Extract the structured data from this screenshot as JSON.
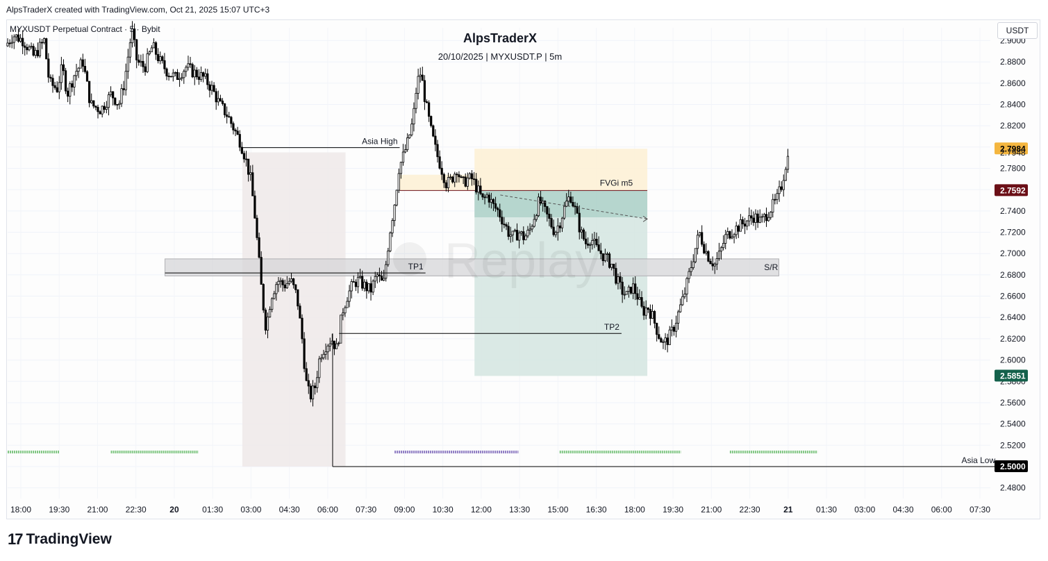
{
  "header": {
    "credit": "AlpsTraderX created with TradingView.com, Oct 21, 2025 15:07 UTC+3"
  },
  "legend": {
    "symbol": "MYXUSDT Perpetual Contract · 5 · Bybit"
  },
  "toolbar": {
    "currency": "USDT"
  },
  "footer": {
    "brand": "TradingView"
  },
  "colors": {
    "candle": "#000000",
    "asia_box": "#efe9e9",
    "fvg_box": "#fdf0d3",
    "tp_zone": "#d3e5e1",
    "tp_zone_dark": "#a9cfc6",
    "sr_box": "#d6d6d8",
    "session_green": "#81c784",
    "session_purple": "#8e7cc3",
    "price_orange": "#f4b63f",
    "price_maroon": "#6b0f17",
    "price_green": "#14614b",
    "price_black": "#000000"
  },
  "chart_data": {
    "type": "candlestick",
    "title": "AlpsTraderX",
    "subtitle": "20/10/2025 | MYXUSDT.P | 5m",
    "x_ticks": [
      "18:00",
      "19:30",
      "21:00",
      "22:30",
      "20",
      "01:30",
      "03:00",
      "04:30",
      "06:00",
      "07:30",
      "09:00",
      "10:30",
      "12:00",
      "13:30",
      "15:00",
      "16:30",
      "18:00",
      "19:30",
      "21:00",
      "22:30",
      "21",
      "01:30",
      "03:00",
      "04:30",
      "06:00",
      "07:30"
    ],
    "y_ticks": [
      2.48,
      2.5,
      2.52,
      2.54,
      2.56,
      2.58,
      2.6,
      2.62,
      2.64,
      2.66,
      2.68,
      2.7,
      2.72,
      2.74,
      2.76,
      2.78,
      2.8,
      2.82,
      2.84,
      2.86,
      2.88,
      2.9
    ],
    "ylim": [
      2.47,
      2.912
    ],
    "x_range_hours": [
      17.9,
      56.0
    ],
    "price_labels": [
      {
        "value": "2.7984",
        "price": 2.7984,
        "color_key": "price_orange",
        "text_color": "#000000"
      },
      {
        "value": "2.7948",
        "price": 2.7948,
        "plain": true
      },
      {
        "value": "2.7592",
        "price": 2.7592,
        "color_key": "price_maroon",
        "text_color": "#ffffff"
      },
      {
        "value": "2.5851",
        "price": 2.5851,
        "color_key": "price_green",
        "text_color": "#ffffff"
      },
      {
        "value": "2.5000",
        "price": 2.5,
        "color_key": "price_black",
        "text_color": "#ffffff"
      }
    ],
    "annotations": [
      {
        "text": "Asia High",
        "kind": "level",
        "price": 2.7995,
        "x0": 27.0,
        "x1": 33.1
      },
      {
        "text": "Asia Low",
        "kind": "level",
        "price": 2.5,
        "x0": 30.5,
        "x1": 56.3
      },
      {
        "text": "FVGi m5",
        "kind": "box"
      },
      {
        "text": "TP1",
        "kind": "level",
        "price": 2.6818,
        "x0": 24.0,
        "x1": 34.1
      },
      {
        "text": "TP2",
        "kind": "level",
        "price": 2.625,
        "x0": 30.75,
        "x1": 41.7
      },
      {
        "text": "S/R",
        "kind": "box"
      },
      {
        "text": "Replay",
        "kind": "watermark"
      }
    ],
    "zones": [
      {
        "name": "asia-session",
        "x0": 27.0,
        "x1": 31.0,
        "y0": 2.5,
        "y1": 2.795
      },
      {
        "name": "fvg",
        "x0": 33.1,
        "x1": 36.0,
        "y0": 2.7592,
        "y1": 2.774
      },
      {
        "name": "fvg-upper",
        "x0": 36.0,
        "x1": 42.7,
        "y0": 2.7592,
        "y1": 2.7984
      },
      {
        "name": "tp-dark",
        "x0": 36.0,
        "x1": 42.7,
        "y0": 2.734,
        "y1": 2.7592
      },
      {
        "name": "tp-light",
        "x0": 36.0,
        "x1": 42.7,
        "y0": 2.5851,
        "y1": 2.734
      },
      {
        "name": "sr",
        "x0": 24.0,
        "x1": 47.8,
        "y0": 2.679,
        "y1": 2.695
      }
    ],
    "trend_line": {
      "x0": 37.0,
      "y0": 2.755,
      "x1": 42.7,
      "y1": 2.7325
    },
    "sessions": [
      {
        "color_key": "session_green",
        "x0": 17.9,
        "x1": 19.9
      },
      {
        "color_key": "session_green",
        "x0": 21.9,
        "x1": 25.3
      },
      {
        "color_key": "session_purple",
        "x0": 32.9,
        "x1": 37.7
      },
      {
        "color_key": "session_green",
        "x0": 39.3,
        "x1": 44.0
      },
      {
        "color_key": "session_green",
        "x0": 45.9,
        "x1": 49.3
      }
    ],
    "path": [
      [
        17.9,
        2.895
      ],
      [
        18.2,
        2.905
      ],
      [
        18.6,
        2.9
      ],
      [
        19.0,
        2.885
      ],
      [
        19.4,
        2.9
      ],
      [
        19.6,
        2.86
      ],
      [
        19.9,
        2.855
      ],
      [
        20.1,
        2.875
      ],
      [
        20.3,
        2.85
      ],
      [
        20.6,
        2.87
      ],
      [
        20.9,
        2.88
      ],
      [
        21.2,
        2.84
      ],
      [
        21.6,
        2.835
      ],
      [
        22.0,
        2.85
      ],
      [
        22.3,
        2.84
      ],
      [
        22.5,
        2.86
      ],
      [
        22.8,
        2.91
      ],
      [
        23.0,
        2.88
      ],
      [
        23.3,
        2.875
      ],
      [
        23.6,
        2.895
      ],
      [
        23.9,
        2.88
      ],
      [
        24.2,
        2.87
      ],
      [
        24.5,
        2.865
      ],
      [
        24.9,
        2.875
      ],
      [
        25.2,
        2.87
      ],
      [
        25.6,
        2.865
      ],
      [
        25.9,
        2.855
      ],
      [
        26.2,
        2.84
      ],
      [
        26.5,
        2.83
      ],
      [
        26.8,
        2.815
      ],
      [
        27.0,
        2.805
      ],
      [
        27.2,
        2.79
      ],
      [
        27.4,
        2.77
      ],
      [
        27.55,
        2.74
      ],
      [
        27.7,
        2.7
      ],
      [
        27.85,
        2.66
      ],
      [
        28.0,
        2.63
      ],
      [
        28.2,
        2.66
      ],
      [
        28.45,
        2.675
      ],
      [
        28.7,
        2.67
      ],
      [
        28.95,
        2.675
      ],
      [
        29.2,
        2.66
      ],
      [
        29.4,
        2.62
      ],
      [
        29.55,
        2.58
      ],
      [
        29.7,
        2.565
      ],
      [
        29.9,
        2.575
      ],
      [
        30.1,
        2.605
      ],
      [
        30.35,
        2.615
      ],
      [
        30.55,
        2.62
      ],
      [
        30.75,
        2.61
      ],
      [
        30.95,
        2.645
      ],
      [
        31.15,
        2.66
      ],
      [
        31.35,
        2.67
      ],
      [
        31.55,
        2.675
      ],
      [
        31.8,
        2.67
      ],
      [
        32.05,
        2.665
      ],
      [
        32.3,
        2.68
      ],
      [
        32.55,
        2.67
      ],
      [
        32.8,
        2.72
      ],
      [
        33.0,
        2.75
      ],
      [
        33.15,
        2.78
      ],
      [
        33.3,
        2.79
      ],
      [
        33.5,
        2.805
      ],
      [
        33.7,
        2.825
      ],
      [
        33.85,
        2.86
      ],
      [
        34.0,
        2.87
      ],
      [
        34.2,
        2.84
      ],
      [
        34.4,
        2.815
      ],
      [
        34.6,
        2.795
      ],
      [
        34.8,
        2.78
      ],
      [
        35.0,
        2.765
      ],
      [
        35.2,
        2.77
      ],
      [
        35.4,
        2.78
      ],
      [
        35.6,
        2.765
      ],
      [
        35.8,
        2.77
      ],
      [
        36.0,
        2.77
      ],
      [
        36.2,
        2.76
      ],
      [
        36.4,
        2.75
      ],
      [
        36.6,
        2.755
      ],
      [
        36.8,
        2.745
      ],
      [
        37.0,
        2.74
      ],
      [
        37.2,
        2.73
      ],
      [
        37.4,
        2.72
      ],
      [
        37.6,
        2.715
      ],
      [
        37.8,
        2.72
      ],
      [
        38.0,
        2.715
      ],
      [
        38.2,
        2.72
      ],
      [
        38.4,
        2.735
      ],
      [
        38.6,
        2.75
      ],
      [
        38.8,
        2.74
      ],
      [
        39.0,
        2.73
      ],
      [
        39.2,
        2.72
      ],
      [
        39.4,
        2.73
      ],
      [
        39.6,
        2.745
      ],
      [
        39.8,
        2.755
      ],
      [
        40.0,
        2.74
      ],
      [
        40.2,
        2.72
      ],
      [
        40.4,
        2.71
      ],
      [
        40.6,
        2.715
      ],
      [
        40.8,
        2.705
      ],
      [
        41.0,
        2.7
      ],
      [
        41.2,
        2.695
      ],
      [
        41.4,
        2.69
      ],
      [
        41.6,
        2.675
      ],
      [
        41.8,
        2.665
      ],
      [
        42.0,
        2.66
      ],
      [
        42.2,
        2.67
      ],
      [
        42.4,
        2.66
      ],
      [
        42.6,
        2.645
      ],
      [
        42.8,
        2.65
      ],
      [
        43.0,
        2.64
      ],
      [
        43.2,
        2.625
      ],
      [
        43.4,
        2.615
      ],
      [
        43.6,
        2.62
      ],
      [
        43.8,
        2.63
      ],
      [
        44.0,
        2.645
      ],
      [
        44.2,
        2.66
      ],
      [
        44.4,
        2.68
      ],
      [
        44.6,
        2.7
      ],
      [
        44.8,
        2.72
      ],
      [
        45.0,
        2.705
      ],
      [
        45.2,
        2.695
      ],
      [
        45.4,
        2.69
      ],
      [
        45.6,
        2.7
      ],
      [
        45.8,
        2.715
      ],
      [
        46.0,
        2.72
      ],
      [
        46.3,
        2.725
      ],
      [
        46.6,
        2.73
      ],
      [
        46.9,
        2.735
      ],
      [
        47.2,
        2.73
      ],
      [
        47.5,
        2.74
      ],
      [
        47.8,
        2.75
      ],
      [
        48.0,
        2.765
      ],
      [
        48.2,
        2.79
      ]
    ]
  }
}
